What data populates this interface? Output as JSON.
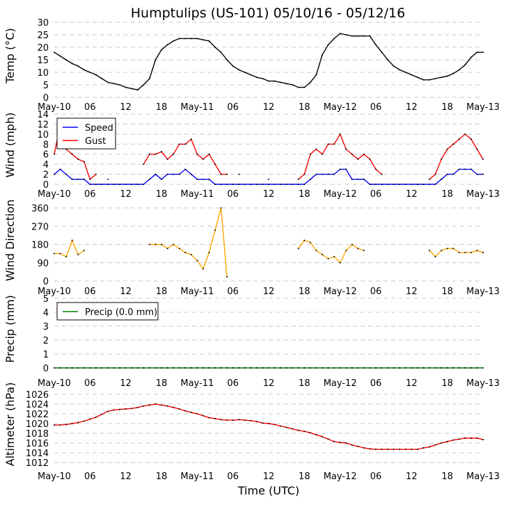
{
  "chart_data": [
    {
      "type": "line",
      "title": "Humptulips (US-101) 05/10/16 - 05/12/16",
      "ylabel": "Temp ($^\\circ$C)",
      "ylabel_display": "Temp (°C)",
      "ylim": [
        0,
        30
      ],
      "yticks": [
        0,
        5,
        10,
        15,
        20,
        25,
        30
      ],
      "grid": true,
      "series": [
        {
          "color": "#000000",
          "values": [
            18,
            16.5,
            15,
            13.5,
            12.5,
            11,
            10,
            9,
            7.5,
            6,
            5.5,
            5,
            4,
            3.5,
            3,
            5,
            7.5,
            15,
            19,
            21,
            22.5,
            23.5,
            23.5,
            23.5,
            23.5,
            23,
            22.5,
            20,
            18,
            15,
            12.5,
            11,
            10,
            9,
            8,
            7.5,
            6.5,
            6.5,
            6,
            5.5,
            5,
            4,
            4,
            6,
            9,
            17,
            21,
            23.5,
            25.5,
            25,
            24.5,
            24.5,
            24.5,
            24.5,
            21,
            18,
            15,
            12.5,
            11,
            10,
            9,
            8,
            7,
            7,
            7.5,
            8,
            8.5,
            9.5,
            11,
            13,
            16,
            18,
            18
          ]
        }
      ]
    },
    {
      "type": "line",
      "ylabel": "Wind (mph)",
      "ylim": [
        0,
        14
      ],
      "yticks": [
        0,
        2,
        4,
        6,
        8,
        10,
        12,
        14
      ],
      "grid": true,
      "legend": "top-left",
      "series": [
        {
          "name": "Speed",
          "color": "#0000ff",
          "values": [
            2,
            3,
            2,
            1,
            1,
            1,
            0,
            0,
            0,
            0,
            0,
            0,
            0,
            0,
            0,
            0,
            1,
            2,
            1,
            2,
            2,
            2,
            3,
            2,
            1,
            1,
            1,
            0,
            0,
            0,
            0,
            0,
            0,
            0,
            0,
            0,
            0,
            0,
            0,
            0,
            0,
            0,
            0,
            1,
            2,
            2,
            2,
            2,
            3,
            3,
            1,
            1,
            1,
            0,
            0,
            0,
            0,
            0,
            0,
            0,
            0,
            0,
            0,
            0,
            0,
            1,
            2,
            2,
            3,
            3,
            3,
            2,
            2
          ]
        },
        {
          "name": "Gust",
          "color": "#ff0000",
          "values": [
            6,
            12,
            7,
            6,
            5,
            4.5,
            1,
            2,
            null,
            1,
            null,
            null,
            null,
            null,
            null,
            4,
            6,
            6,
            6.5,
            5,
            6,
            8,
            8,
            9,
            6,
            5,
            6,
            4,
            2,
            2,
            null,
            2,
            null,
            null,
            null,
            null,
            1,
            null,
            null,
            null,
            null,
            1,
            2,
            6,
            7,
            6,
            8,
            8,
            10,
            7,
            6,
            5,
            6,
            5,
            3,
            2,
            null,
            null,
            null,
            null,
            null,
            null,
            null,
            1,
            2,
            5,
            7,
            8,
            9,
            10,
            9,
            7,
            5
          ]
        }
      ]
    },
    {
      "type": "line",
      "ylabel": "Wind Direction",
      "ylim": [
        0,
        360
      ],
      "yticks": [
        0,
        90,
        180,
        270,
        360
      ],
      "grid": true,
      "series": [
        {
          "color": "#ffa500",
          "values": [
            135,
            135,
            120,
            200,
            130,
            150,
            null,
            null,
            null,
            null,
            null,
            null,
            null,
            null,
            null,
            null,
            180,
            180,
            180,
            160,
            180,
            160,
            140,
            130,
            100,
            60,
            140,
            250,
            360,
            20,
            null,
            null,
            null,
            null,
            null,
            null,
            null,
            null,
            null,
            null,
            null,
            160,
            200,
            190,
            150,
            130,
            110,
            120,
            90,
            150,
            180,
            160,
            150,
            null,
            null,
            null,
            null,
            null,
            null,
            null,
            null,
            null,
            null,
            150,
            120,
            150,
            160,
            160,
            140,
            140,
            140,
            150,
            140
          ]
        }
      ]
    },
    {
      "type": "line",
      "ylabel": "Precip (mm)",
      "ylim": [
        0,
        5
      ],
      "yticks": [
        0,
        1,
        2,
        3,
        4,
        5
      ],
      "grid": true,
      "legend": "top-left",
      "series": [
        {
          "name": "Precip (0.0 mm)",
          "color": "#008000",
          "values": [
            0,
            0,
            0,
            0,
            0,
            0,
            0,
            0,
            0,
            0,
            0,
            0,
            0,
            0,
            0,
            0,
            0,
            0,
            0,
            0,
            0,
            0,
            0,
            0,
            0,
            0,
            0,
            0,
            0,
            0,
            0,
            0,
            0,
            0,
            0,
            0,
            0,
            0,
            0,
            0,
            0,
            0,
            0,
            0,
            0,
            0,
            0,
            0,
            0,
            0,
            0,
            0,
            0,
            0,
            0,
            0,
            0,
            0,
            0,
            0,
            0,
            0,
            0,
            0,
            0,
            0,
            0,
            0,
            0,
            0,
            0,
            0,
            0
          ]
        }
      ]
    },
    {
      "type": "line",
      "ylabel": "Altimeter (hPa)",
      "xlabel": "Time (UTC)",
      "ylim": [
        1012,
        1026
      ],
      "yticks": [
        1012,
        1014,
        1016,
        1018,
        1020,
        1022,
        1024,
        1026
      ],
      "grid": true,
      "series": [
        {
          "color": "#ff0000",
          "values": [
            1019.7,
            1019.7,
            1019.8,
            1020,
            1020.2,
            1020.5,
            1020.9,
            1021.3,
            1021.9,
            1022.5,
            1022.8,
            1022.9,
            1023,
            1023.1,
            1023.3,
            1023.6,
            1023.8,
            1024,
            1023.8,
            1023.6,
            1023.3,
            1023,
            1022.6,
            1022.3,
            1022,
            1021.6,
            1021.2,
            1021,
            1020.8,
            1020.7,
            1020.7,
            1020.8,
            1020.7,
            1020.6,
            1020.4,
            1020.1,
            1020,
            1019.8,
            1019.5,
            1019.2,
            1018.9,
            1018.6,
            1018.4,
            1018.1,
            1017.7,
            1017.3,
            1016.8,
            1016.3,
            1016.1,
            1016,
            1015.6,
            1015.3,
            1015,
            1014.8,
            1014.7,
            1014.7,
            1014.7,
            1014.7,
            1014.7,
            1014.7,
            1014.7,
            1014.7,
            1015,
            1015.2,
            1015.6,
            1016,
            1016.3,
            1016.6,
            1016.8,
            1017,
            1017,
            1017,
            1016.7
          ]
        }
      ]
    }
  ],
  "x": {
    "start": "2016-05-10T00:00Z",
    "end": "2016-05-13T00:00Z",
    "sample_times": "hourly, 2016-05-10T00:00Z through 2016-05-13T00:00Z",
    "tick_labels": [
      "May-10",
      "06",
      "12",
      "18",
      "May-11",
      "06",
      "12",
      "18",
      "May-12",
      "06",
      "12",
      "18",
      "May-13"
    ]
  }
}
